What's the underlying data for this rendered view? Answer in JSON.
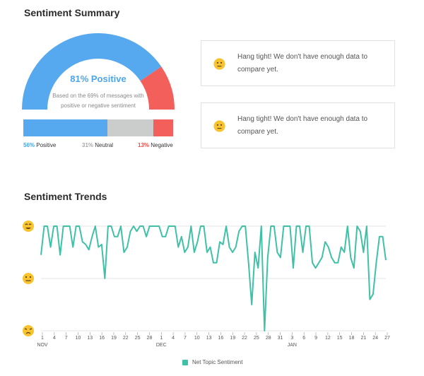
{
  "summary": {
    "title": "Sentiment Summary",
    "headline": "81% Positive",
    "subtext": "Based on the 69% of messages with positive or negative sentiment",
    "gauge_positive_fraction": 0.81,
    "breakdown": [
      {
        "pct": "56%",
        "label": "Positive",
        "value": 56,
        "color": "#56a8ef"
      },
      {
        "pct": "31%",
        "label": "Neutral",
        "value": 31,
        "color": "#cbcdcd"
      },
      {
        "pct": "13%",
        "label": "Negative",
        "value": 13,
        "color": "#f35f5a"
      }
    ]
  },
  "notices": [
    {
      "icon": "neutral-face-icon",
      "text": "Hang tight! We don't have enough data to compare yet."
    },
    {
      "icon": "neutral-face-icon",
      "text": "Hang tight! We don't have enough data to compare yet."
    }
  ],
  "trends": {
    "title": "Sentiment Trends",
    "legend_label": "Net Topic Sentiment",
    "line_color": "#3fc1a7",
    "y_icons": [
      "smiling-face-icon",
      "neutral-face-icon",
      "unhappy-face-icon"
    ]
  },
  "chart_data": {
    "type": "line",
    "y_range": [
      -1,
      1
    ],
    "grid": true,
    "x_tick_labels": [
      "1",
      "4",
      "7",
      "10",
      "13",
      "16",
      "19",
      "22",
      "25",
      "28",
      "1",
      "4",
      "7",
      "10",
      "13",
      "16",
      "19",
      "22",
      "25",
      "28",
      "31",
      "3",
      "6",
      "9",
      "12",
      "15",
      "18",
      "21",
      "24",
      "27"
    ],
    "month_labels": [
      {
        "label": "NOV",
        "tick_index": 0
      },
      {
        "label": "DEC",
        "tick_index": 10
      },
      {
        "label": "JAN",
        "tick_index": 21
      }
    ],
    "series": [
      {
        "name": "Net Topic Sentiment",
        "values": [
          0.45,
          1,
          1,
          0.6,
          1,
          1,
          0.45,
          1,
          1,
          1,
          0.6,
          1,
          1,
          0.7,
          0.65,
          0.55,
          0.8,
          1,
          0.6,
          0.65,
          0,
          1,
          1,
          0.8,
          0.8,
          1,
          0.5,
          0.6,
          0.9,
          1,
          0.9,
          1,
          1,
          0.8,
          1,
          1,
          1,
          1,
          0.8,
          0.8,
          1,
          1,
          1,
          0.6,
          0.8,
          0.5,
          0.6,
          1,
          0.5,
          0.7,
          1,
          1,
          0.5,
          0.6,
          0.3,
          0.3,
          0.7,
          0.65,
          1,
          0.6,
          0.5,
          0.6,
          0.9,
          1,
          1,
          0.3,
          -0.5,
          0.5,
          0.2,
          1,
          -1,
          0.4,
          1,
          1,
          0.5,
          0.4,
          1,
          1,
          1,
          0.2,
          1,
          1,
          0.5,
          1,
          1,
          0.3,
          0.2,
          0.3,
          0.4,
          0.7,
          0.6,
          0.4,
          0.3,
          0.3,
          0.6,
          0.5,
          1,
          0.4,
          0.2,
          1,
          0.9,
          0.5,
          1,
          -0.4,
          -0.3,
          0.3,
          0.8,
          0.8,
          0.35
        ]
      }
    ]
  }
}
